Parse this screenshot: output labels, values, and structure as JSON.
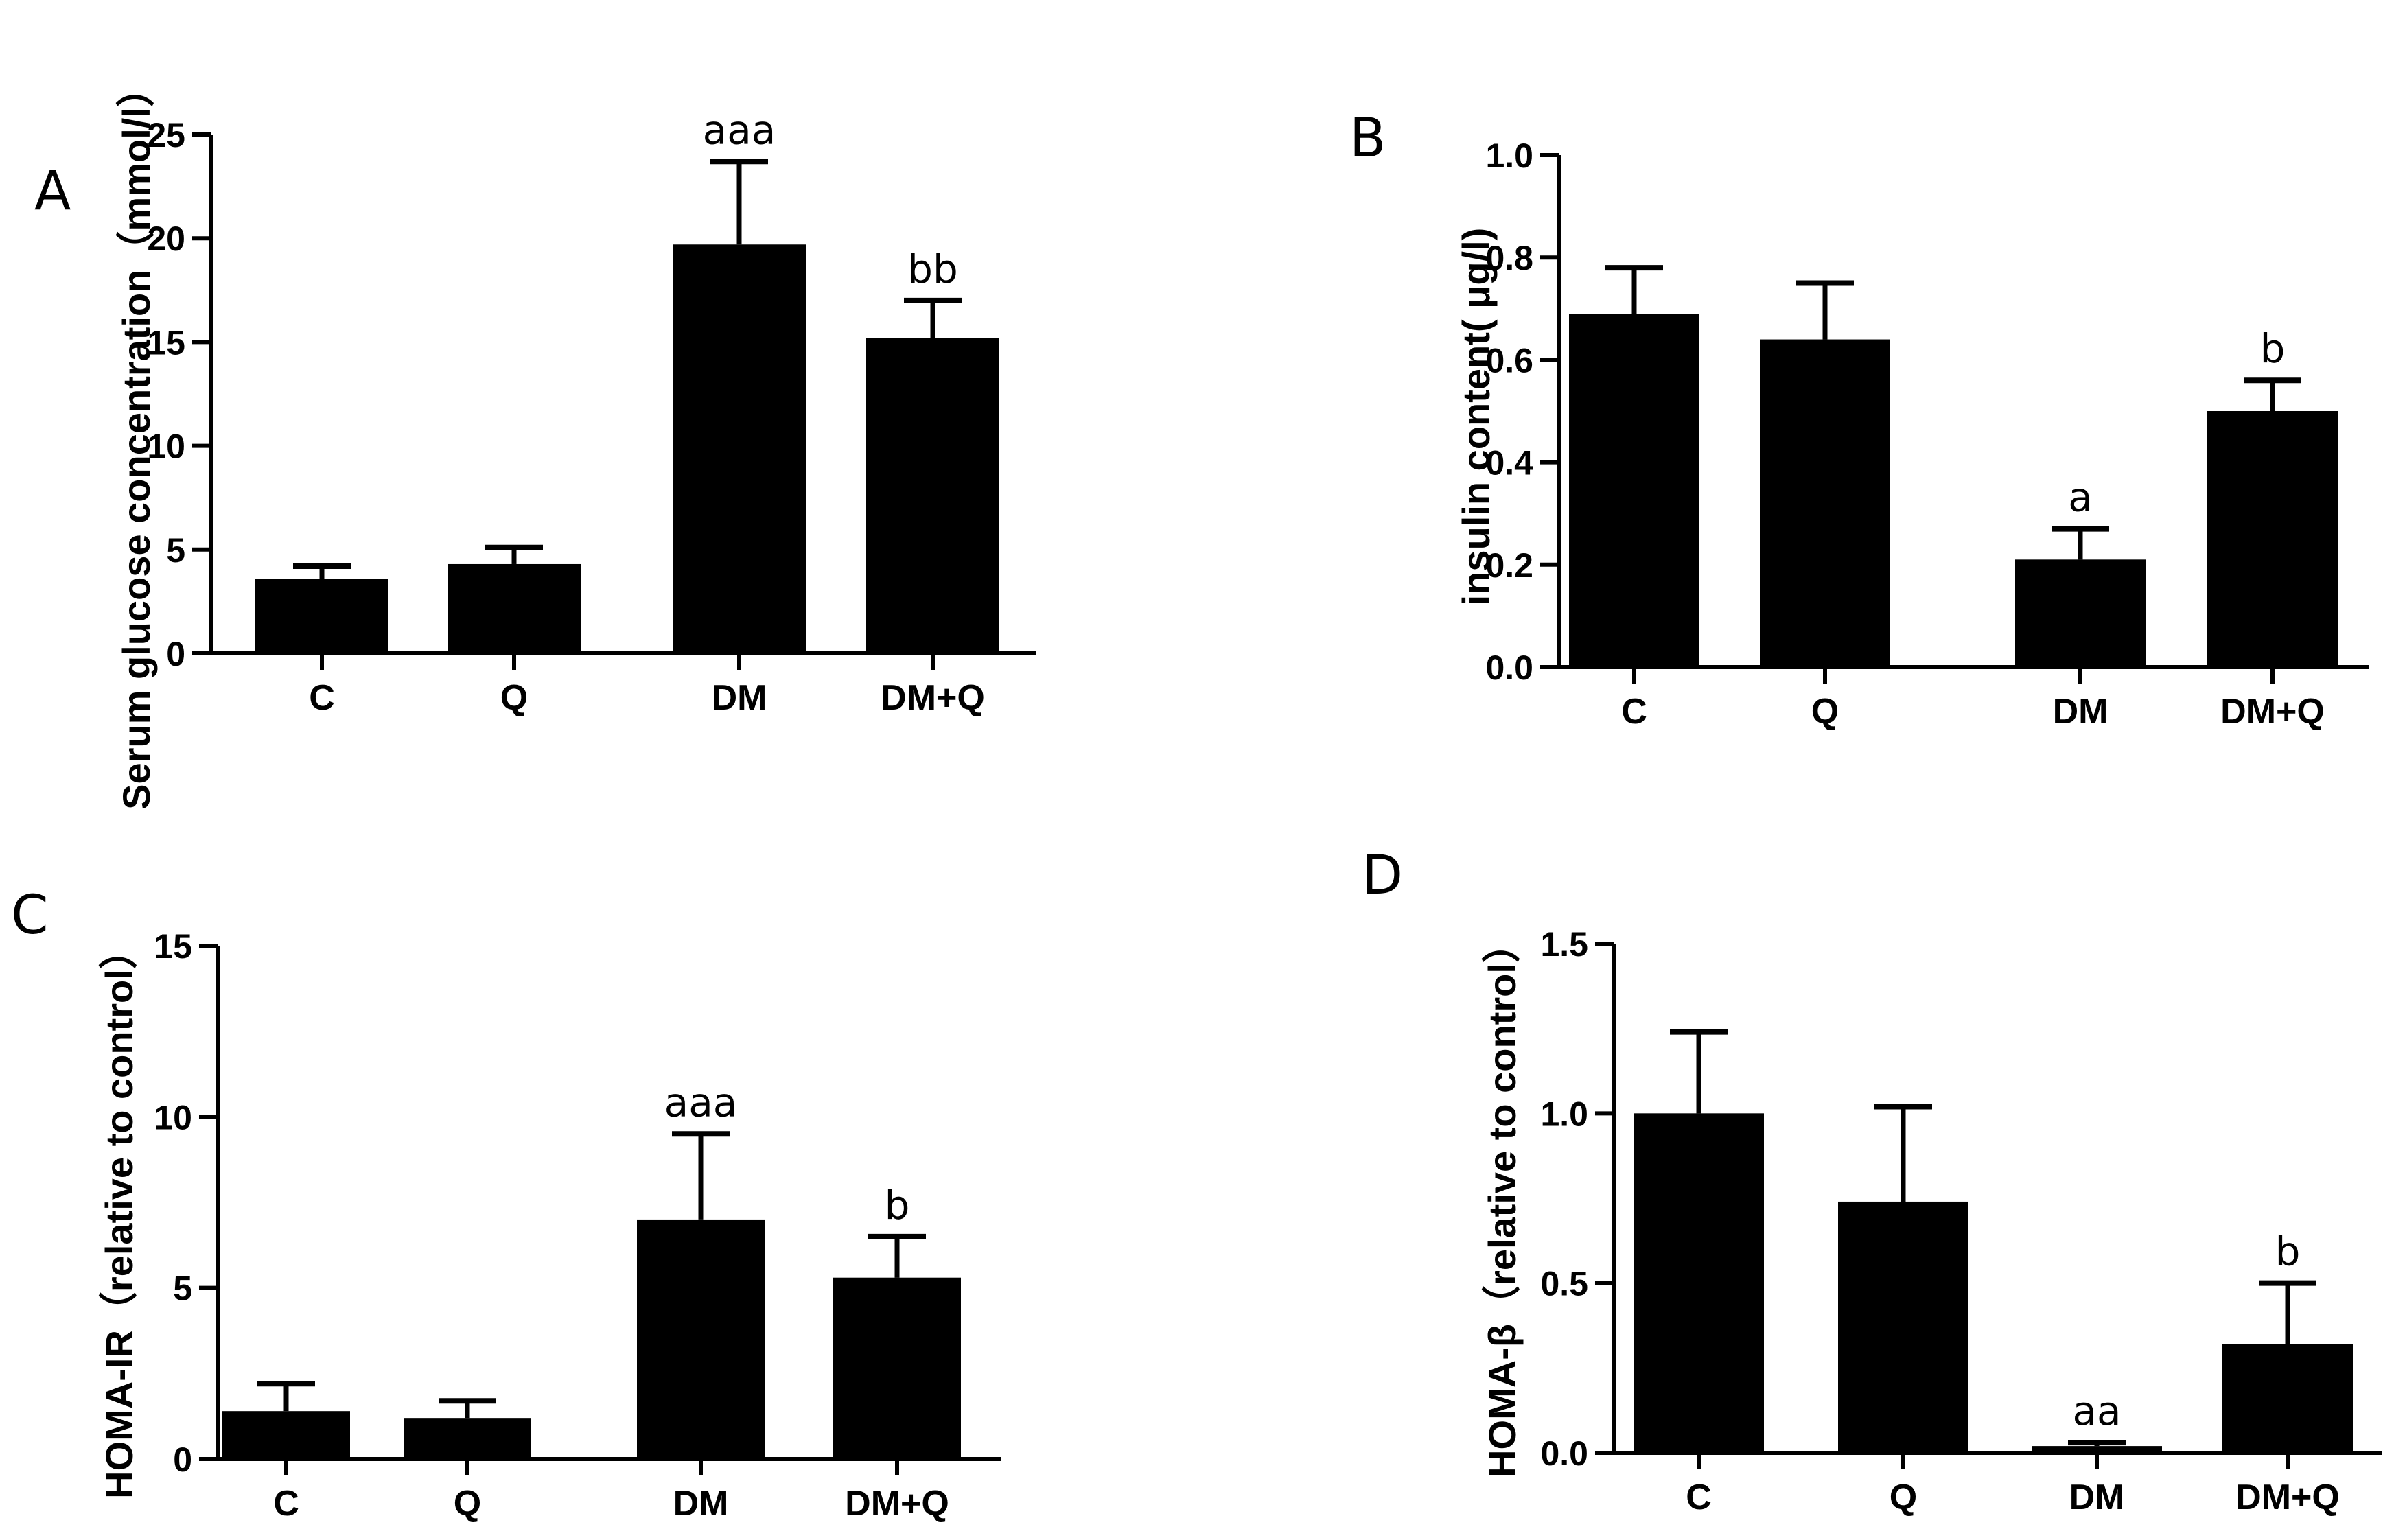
{
  "chart_data": [
    {
      "panel": "A",
      "type": "bar",
      "title": "",
      "ylabel": "Serum glucose concentration（mmol/l）",
      "xlabel": "",
      "categories": [
        "C",
        "Q",
        "DM",
        "DM+Q"
      ],
      "values": [
        3.6,
        4.3,
        19.7,
        15.2
      ],
      "errors": [
        0.6,
        0.8,
        4.0,
        1.8
      ],
      "annotations": [
        "",
        "",
        "aaa",
        "bb"
      ],
      "ylim": [
        0,
        25
      ],
      "yticks": [
        0,
        5,
        10,
        15,
        20,
        25
      ],
      "ytick_labels": [
        "0",
        "5",
        "10",
        "15",
        "20",
        "25"
      ],
      "bar_color": "#000000",
      "grid": false,
      "legend": "none"
    },
    {
      "panel": "B",
      "type": "bar",
      "title": "",
      "ylabel": "insulin content( μg/l)",
      "xlabel": "",
      "categories": [
        "C",
        "Q",
        "DM",
        "DM+Q"
      ],
      "values": [
        0.69,
        0.64,
        0.21,
        0.5
      ],
      "errors": [
        0.09,
        0.11,
        0.06,
        0.06
      ],
      "annotations": [
        "",
        "",
        "a",
        "b"
      ],
      "ylim": [
        0,
        1.0
      ],
      "yticks": [
        0,
        0.2,
        0.4,
        0.6,
        0.8,
        1.0
      ],
      "ytick_labels": [
        "0.0",
        "0.2",
        "0.4",
        "0.6",
        "0.8",
        "1.0"
      ],
      "bar_color": "#000000",
      "grid": false,
      "legend": "none"
    },
    {
      "panel": "C",
      "type": "bar",
      "title": "",
      "ylabel": "HOMA-IR（relative to control）",
      "xlabel": "",
      "categories": [
        "C",
        "Q",
        "DM",
        "DM+Q"
      ],
      "values": [
        1.4,
        1.2,
        7.0,
        5.3
      ],
      "errors": [
        0.8,
        0.5,
        2.5,
        1.2
      ],
      "annotations": [
        "",
        "",
        "aaa",
        "b"
      ],
      "ylim": [
        0,
        15
      ],
      "yticks": [
        0,
        5,
        10,
        15
      ],
      "ytick_labels": [
        "0",
        "5",
        "10",
        "15"
      ],
      "bar_color": "#000000",
      "grid": false,
      "legend": "none"
    },
    {
      "panel": "D",
      "type": "bar",
      "title": "",
      "ylabel": "HOMA-β（relative to control）",
      "xlabel": "",
      "categories": [
        "C",
        "Q",
        "DM",
        "DM+Q"
      ],
      "values": [
        1.0,
        0.74,
        0.02,
        0.32
      ],
      "errors": [
        0.24,
        0.28,
        0.01,
        0.18
      ],
      "annotations": [
        "",
        "",
        "aa",
        "b"
      ],
      "ylim": [
        0,
        1.5
      ],
      "yticks": [
        0,
        0.5,
        1.0,
        1.5
      ],
      "ytick_labels": [
        "0.0",
        "0.5",
        "1.0",
        "1.5"
      ],
      "bar_color": "#000000",
      "grid": false,
      "legend": "none"
    }
  ]
}
